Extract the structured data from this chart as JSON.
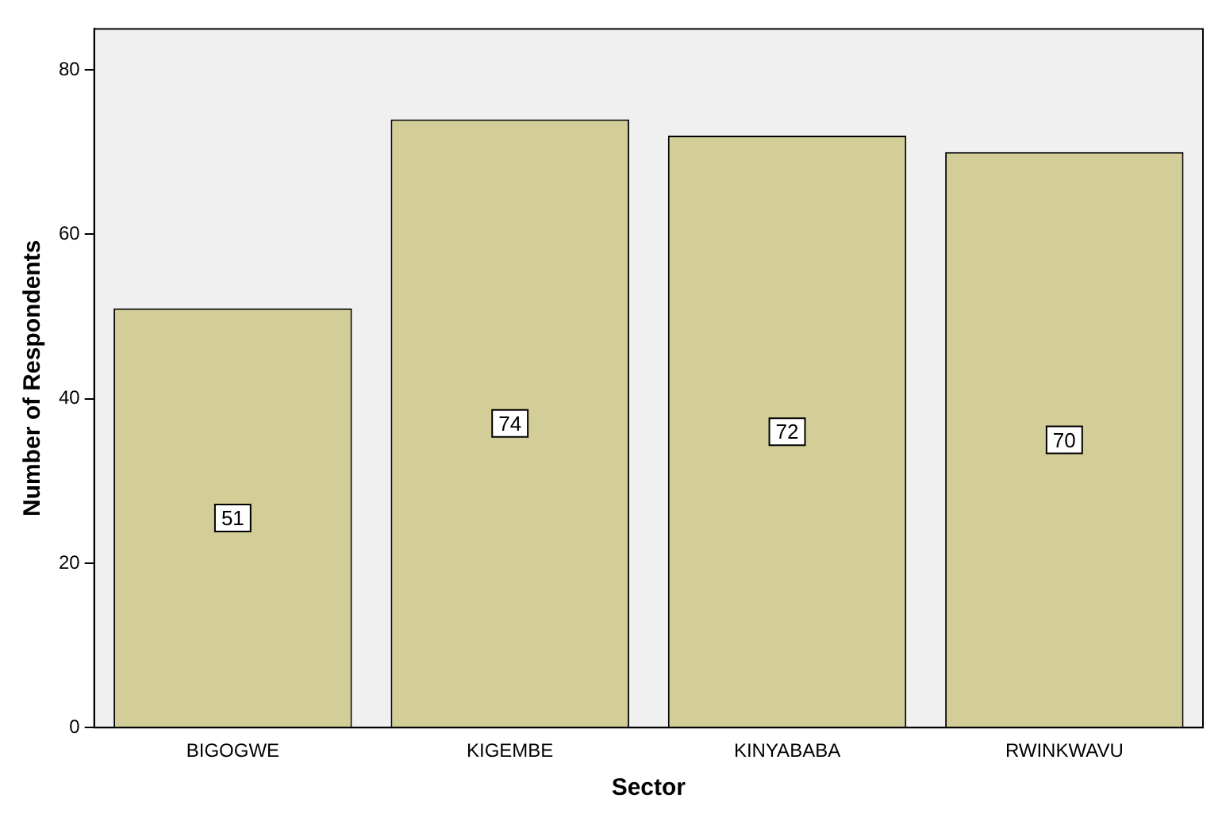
{
  "chart_data": {
    "type": "bar",
    "xlabel": "Sector",
    "ylabel": "Number of Respondents",
    "categories": [
      "BIGOGWE",
      "KIGEMBE",
      "KINYABABA",
      "RWINKWAVU"
    ],
    "values": [
      51,
      74,
      72,
      70
    ],
    "color": "#d3ce97",
    "ylim": [
      0,
      85
    ],
    "yticks": [
      0,
      20,
      40,
      60,
      80
    ],
    "grid": false,
    "legend": false,
    "data_labels": true
  }
}
